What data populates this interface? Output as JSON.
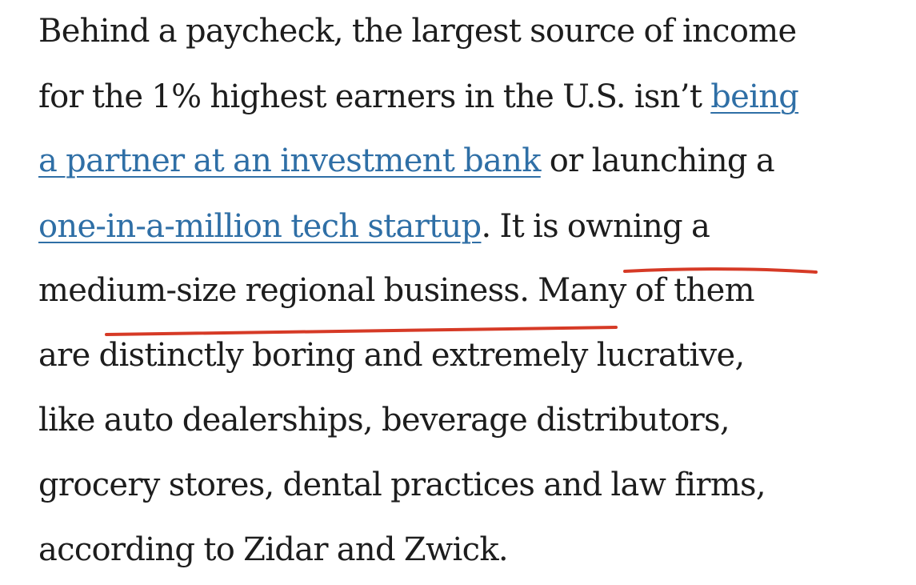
{
  "article": {
    "line1": "Behind a paycheck, the largest source of income",
    "line2_text": "for the 1% highest earners in the U.S. isn’t ",
    "link1_part1": "being",
    "link1_part2": "a partner at an investment bank",
    "line3_after": " or launching a",
    "link2": "one-in-a-million tech startup",
    "line4_after": ". It is owning a",
    "line5": "medium-size regional business. Many of them",
    "line6": "are distinctly boring and extremely lucrative,",
    "line7": "like auto dealerships, beverage distributors,",
    "line8": "grocery stores, dental practices and law firms,",
    "line9": "according to Zidar and Zwick."
  },
  "colors": {
    "text": "#1d1d1d",
    "link": "#2f6fa6",
    "annotation": "#d63a26",
    "background": "#ffffff"
  }
}
